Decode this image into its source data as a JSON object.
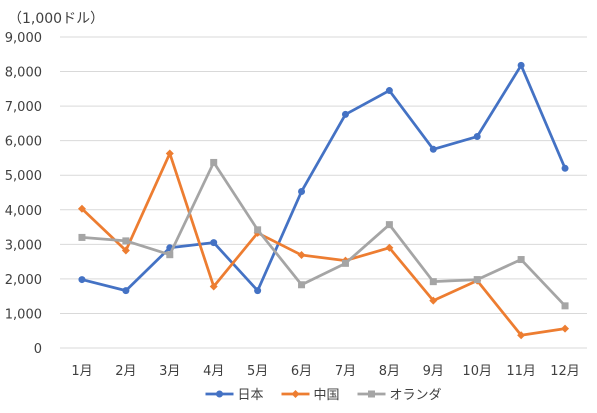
{
  "chart_data": {
    "type": "line",
    "unit_label": "（1,000ドル）",
    "categories": [
      "1月",
      "2月",
      "3月",
      "4月",
      "5月",
      "6月",
      "7月",
      "8月",
      "9月",
      "10月",
      "11月",
      "12月"
    ],
    "ylim": [
      0,
      9000
    ],
    "yticks": [
      0,
      1000,
      2000,
      3000,
      4000,
      5000,
      6000,
      7000,
      8000,
      9000
    ],
    "ytick_labels": [
      "0",
      "1,000",
      "2,000",
      "3,000",
      "4,000",
      "5,000",
      "6,000",
      "7,000",
      "8,000",
      "9,000"
    ],
    "grid": true,
    "legend_position": "bottom",
    "series": [
      {
        "name": "日本",
        "color": "#4472C4",
        "marker": "circle",
        "values": [
          1980,
          1660,
          2900,
          3050,
          1660,
          4530,
          6760,
          7450,
          5750,
          6120,
          8180,
          5200
        ]
      },
      {
        "name": "中国",
        "color": "#ED7D31",
        "marker": "diamond",
        "values": [
          4030,
          2820,
          5630,
          1780,
          3330,
          2690,
          2530,
          2900,
          1370,
          1950,
          370,
          560
        ]
      },
      {
        "name": "オランダ",
        "color": "#A5A5A5",
        "marker": "square",
        "values": [
          3200,
          3100,
          2700,
          5370,
          3420,
          1830,
          2450,
          3570,
          1920,
          1980,
          2560,
          1220
        ]
      }
    ]
  }
}
